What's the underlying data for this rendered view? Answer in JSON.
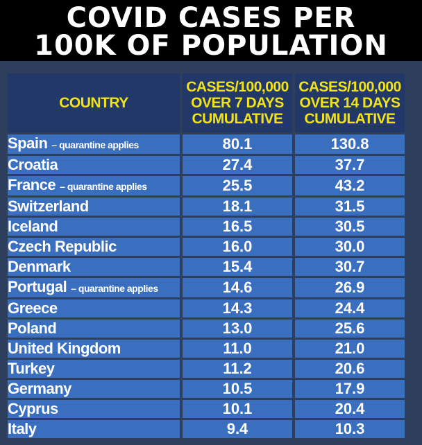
{
  "title_line1": "COVID CASES PER",
  "title_line2": "100K OF POPULATION",
  "chart_data": {
    "type": "table",
    "headers": {
      "country": "COUNTRY",
      "col7": [
        "CASES/100,000",
        "OVER 7 DAYS",
        "CUMULATIVE"
      ],
      "col14": [
        "CASES/100,000",
        "OVER 14 DAYS",
        "CUMULATIVE"
      ]
    },
    "rows": [
      {
        "country": "Spain",
        "note": "– quarantine applies",
        "d7": "80.1",
        "d14": "130.8"
      },
      {
        "country": "Croatia",
        "note": "",
        "d7": "27.4",
        "d14": "37.7"
      },
      {
        "country": "France",
        "note": "– quarantine applies",
        "d7": "25.5",
        "d14": "43.2"
      },
      {
        "country": "Switzerland",
        "note": "",
        "d7": "18.1",
        "d14": "31.5"
      },
      {
        "country": "Iceland",
        "note": "",
        "d7": "16.5",
        "d14": "30.5"
      },
      {
        "country": "Czech Republic",
        "note": "",
        "d7": "16.0",
        "d14": "30.0"
      },
      {
        "country": "Denmark",
        "note": "",
        "d7": "15.4",
        "d14": "30.7"
      },
      {
        "country": "Portugal",
        "note": "– quarantine applies",
        "d7": "14.6",
        "d14": "26.9"
      },
      {
        "country": "Greece",
        "note": "",
        "d7": "14.3",
        "d14": "24.4"
      },
      {
        "country": "Poland",
        "note": "",
        "d7": "13.0",
        "d14": "25.6"
      },
      {
        "country": "United Kingdom",
        "note": "",
        "d7": "11.0",
        "d14": "21.0"
      },
      {
        "country": "Turkey",
        "note": "",
        "d7": "11.2",
        "d14": "20.6"
      },
      {
        "country": "Germany",
        "note": "",
        "d7": "10.5",
        "d14": "17.9"
      },
      {
        "country": "Cyprus",
        "note": "",
        "d7": "10.1",
        "d14": "20.4"
      },
      {
        "country": "Italy",
        "note": "",
        "d7": "9.4",
        "d14": "10.3"
      }
    ]
  }
}
